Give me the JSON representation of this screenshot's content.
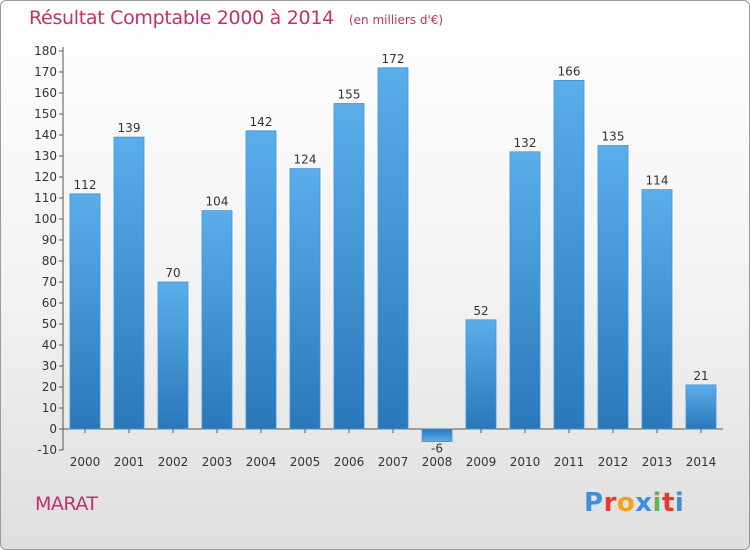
{
  "header": {
    "title": "Résultat Comptable 2000 à 2014",
    "unit": "(en milliers d'€)"
  },
  "footer": {
    "commune": "MARAT",
    "logo_letters": [
      "P",
      "r",
      "o",
      "x",
      "i",
      "t",
      "i"
    ],
    "logo_colors": [
      "#3f8fd8",
      "#e8392d",
      "#f5a21b",
      "#3f8fd8",
      "#6ab04c",
      "#e8392d",
      "#3f8fd8"
    ]
  },
  "colors": {
    "title": "#c0306b",
    "bar_light": "#5aaeea",
    "bar_dark": "#2a78ba"
  },
  "chart_data": {
    "type": "bar",
    "title": "Résultat Comptable 2000 à 2014",
    "xlabel": "",
    "ylabel": "",
    "categories": [
      "2000",
      "2001",
      "2002",
      "2003",
      "2004",
      "2005",
      "2006",
      "2007",
      "2008",
      "2009",
      "2010",
      "2011",
      "2012",
      "2013",
      "2014"
    ],
    "values": [
      112,
      139,
      70,
      104,
      142,
      124,
      155,
      172,
      -6,
      52,
      132,
      166,
      135,
      114,
      21
    ],
    "ylim": [
      -10,
      180
    ],
    "ytick_step": 10,
    "grid": false,
    "legend": "none"
  }
}
